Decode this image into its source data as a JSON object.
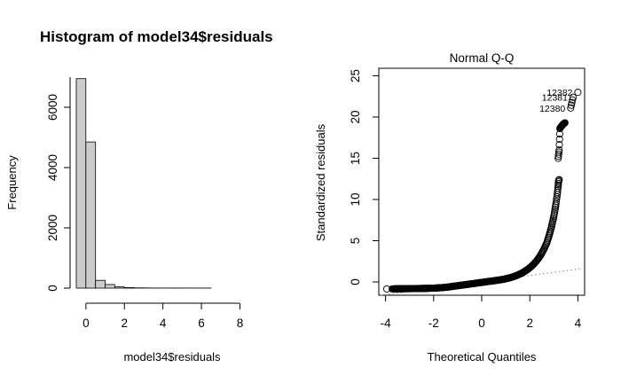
{
  "chart_data": [
    {
      "type": "bar",
      "title": "Histogram of model34$residuals",
      "xlabel": "model34$residuals",
      "ylabel": "Frequency",
      "x_ticks": [
        "0",
        "2",
        "4",
        "6",
        "8"
      ],
      "y_ticks": [
        "0",
        "2000",
        "4000",
        "6000"
      ],
      "xlim": [
        -0.5,
        9.5
      ],
      "ylim": [
        0,
        7000
      ],
      "bin_width": 0.5,
      "bins": [
        {
          "x0": -0.5,
          "x1": 0.0,
          "count": 6950
        },
        {
          "x0": 0.0,
          "x1": 0.5,
          "count": 4850
        },
        {
          "x0": 0.5,
          "x1": 1.0,
          "count": 260
        },
        {
          "x0": 1.0,
          "x1": 1.5,
          "count": 120
        },
        {
          "x0": 1.5,
          "x1": 2.0,
          "count": 45
        },
        {
          "x0": 2.0,
          "x1": 2.5,
          "count": 18
        },
        {
          "x0": 2.5,
          "x1": 3.0,
          "count": 8
        },
        {
          "x0": 3.0,
          "x1": 3.5,
          "count": 5
        },
        {
          "x0": 3.5,
          "x1": 4.0,
          "count": 4
        },
        {
          "x0": 4.0,
          "x1": 4.5,
          "count": 3
        },
        {
          "x0": 4.5,
          "x1": 5.0,
          "count": 3
        },
        {
          "x0": 5.0,
          "x1": 5.5,
          "count": 2
        },
        {
          "x0": 5.5,
          "x1": 6.0,
          "count": 2
        },
        {
          "x0": 6.0,
          "x1": 6.5,
          "count": 2
        },
        {
          "x0": 6.5,
          "x1": 7.0,
          "count": 1
        },
        {
          "x0": 7.0,
          "x1": 7.5,
          "count": 1
        },
        {
          "x0": 7.5,
          "x1": 8.0,
          "count": 1
        },
        {
          "x0": 8.0,
          "x1": 8.5,
          "count": 1
        },
        {
          "x0": 8.5,
          "x1": 9.0,
          "count": 1
        },
        {
          "x0": 9.0,
          "x1": 9.5,
          "count": 1
        }
      ],
      "bar_fill": "#cccccc"
    },
    {
      "type": "scatter",
      "title": "Normal Q-Q",
      "xlabel": "Theoretical Quantiles",
      "ylabel": "Standardized residuals",
      "x_ticks": [
        "-4",
        "-2",
        "0",
        "2",
        "4"
      ],
      "y_ticks": [
        "0",
        "5",
        "10",
        "15",
        "20",
        "25"
      ],
      "xlim": [
        -4.2,
        4.2
      ],
      "ylim": [
        -1.5,
        26
      ],
      "reference_line": {
        "slope": 0.39,
        "intercept": 0.0,
        "style": "dotted",
        "color": "#808080"
      },
      "points": [
        [
          -3.95,
          -0.85
        ],
        [
          -3.72,
          -0.85
        ],
        [
          -3.62,
          -0.84
        ],
        [
          -3.55,
          -0.84
        ],
        [
          -3.48,
          -0.83
        ],
        [
          -3.4,
          -0.83
        ],
        [
          -3.3,
          -0.83
        ],
        [
          -3.2,
          -0.82
        ],
        [
          -3.1,
          -0.82
        ],
        [
          -3.0,
          -0.82
        ],
        [
          -2.9,
          -0.81
        ],
        [
          -2.8,
          -0.81
        ],
        [
          -2.7,
          -0.8
        ],
        [
          -2.6,
          -0.8
        ],
        [
          -2.5,
          -0.79
        ],
        [
          -2.4,
          -0.79
        ],
        [
          -2.3,
          -0.78
        ],
        [
          -2.2,
          -0.77
        ],
        [
          -2.1,
          -0.76
        ],
        [
          -2.0,
          -0.75
        ],
        [
          -1.9,
          -0.74
        ],
        [
          -1.8,
          -0.72
        ],
        [
          -1.7,
          -0.7
        ],
        [
          -1.6,
          -0.68
        ],
        [
          -1.5,
          -0.65
        ],
        [
          -1.4,
          -0.62
        ],
        [
          -1.3,
          -0.58
        ],
        [
          -1.2,
          -0.54
        ],
        [
          -1.1,
          -0.5
        ],
        [
          -1.0,
          -0.46
        ],
        [
          -0.9,
          -0.42
        ],
        [
          -0.8,
          -0.38
        ],
        [
          -0.7,
          -0.34
        ],
        [
          -0.6,
          -0.3
        ],
        [
          -0.5,
          -0.26
        ],
        [
          -0.4,
          -0.22
        ],
        [
          -0.3,
          -0.18
        ],
        [
          -0.2,
          -0.14
        ],
        [
          -0.1,
          -0.1
        ],
        [
          0.0,
          -0.06
        ],
        [
          0.1,
          -0.02
        ],
        [
          0.2,
          0.02
        ],
        [
          0.3,
          0.06
        ],
        [
          0.4,
          0.1
        ],
        [
          0.5,
          0.14
        ],
        [
          0.6,
          0.18
        ],
        [
          0.7,
          0.22
        ],
        [
          0.8,
          0.27
        ],
        [
          0.9,
          0.32
        ],
        [
          1.0,
          0.38
        ],
        [
          1.1,
          0.45
        ],
        [
          1.2,
          0.53
        ],
        [
          1.3,
          0.62
        ],
        [
          1.4,
          0.72
        ],
        [
          1.5,
          0.84
        ],
        [
          1.6,
          0.97
        ],
        [
          1.7,
          1.12
        ],
        [
          1.8,
          1.3
        ],
        [
          1.9,
          1.5
        ],
        [
          2.0,
          1.72
        ],
        [
          2.1,
          1.98
        ],
        [
          2.2,
          2.28
        ],
        [
          2.3,
          2.62
        ],
        [
          2.4,
          3.02
        ],
        [
          2.5,
          3.5
        ],
        [
          2.6,
          4.05
        ],
        [
          2.7,
          4.7
        ],
        [
          2.78,
          5.4
        ],
        [
          2.85,
          6.1
        ],
        [
          2.92,
          6.9
        ],
        [
          2.98,
          7.7
        ],
        [
          3.04,
          8.6
        ],
        [
          3.09,
          9.5
        ],
        [
          3.14,
          10.6
        ],
        [
          3.18,
          11.6
        ],
        [
          3.2,
          12.3
        ],
        [
          3.22,
          12.4
        ],
        [
          3.18,
          15.0
        ],
        [
          3.22,
          16.0
        ],
        [
          3.25,
          18.6
        ],
        [
          3.32,
          18.9
        ],
        [
          3.38,
          19.1
        ],
        [
          3.46,
          19.3
        ],
        [
          3.7,
          21.1
        ],
        [
          3.8,
          22.4
        ],
        [
          4.0,
          23.0
        ]
      ],
      "annotations": [
        {
          "label": "12382",
          "x": 4.0,
          "y": 23.0
        },
        {
          "label": "12381",
          "x": 3.8,
          "y": 22.4
        },
        {
          "label": "12380",
          "x": 3.7,
          "y": 21.1
        }
      ]
    }
  ]
}
